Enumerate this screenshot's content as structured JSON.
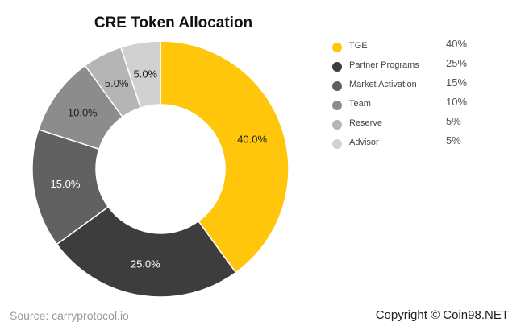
{
  "chart_data": {
    "type": "pie",
    "title": "CRE Token Allocation",
    "categories": [
      "TGE",
      "Partner Programs",
      "Market Activation",
      "Team",
      "Reserve",
      "Advisor"
    ],
    "values": [
      40,
      25,
      15,
      10,
      5,
      5
    ],
    "slice_labels": [
      "40.0%",
      "25.0%",
      "15.0%",
      "10.0%",
      "5.0%",
      "5.0%"
    ],
    "legend_values": [
      "40%",
      "25%",
      "15%",
      "10%",
      "5%",
      "5%"
    ],
    "colors": [
      "#FFC60B",
      "#3D3D3D",
      "#616161",
      "#8C8C8C",
      "#B5B5B5",
      "#D1D1D1"
    ],
    "label_colors": [
      "#222222",
      "#ffffff",
      "#ffffff",
      "#222222",
      "#222222",
      "#222222"
    ],
    "legend_placement": "right"
  },
  "footer": {
    "source": "Source: carryprotocol.io",
    "copyright": "Copyright © Coin98.NET"
  }
}
